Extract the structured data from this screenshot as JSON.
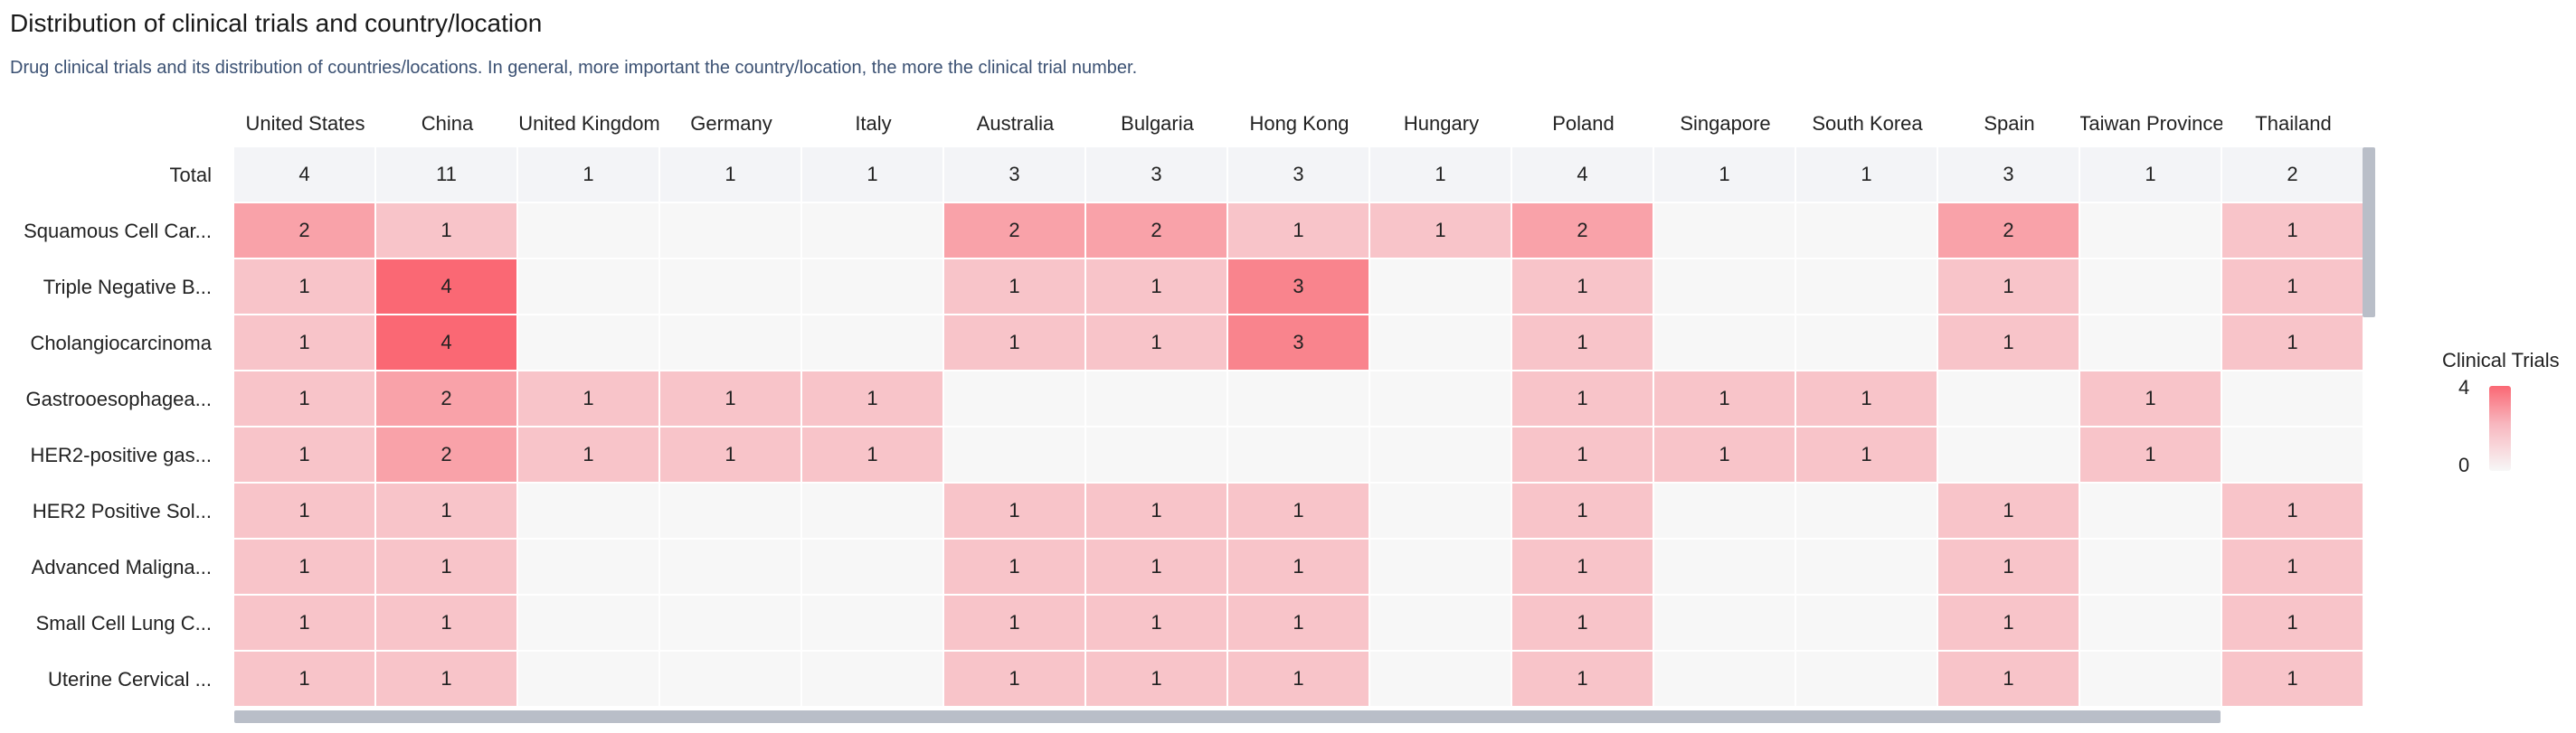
{
  "title": "Distribution of clinical trials and country/location",
  "subtitle": "Drug clinical trials and its distribution of countries/locations. In general, more important the country/location, the more the clinical trial number.",
  "legend": {
    "title": "Clinical Trials",
    "max_label": "4",
    "min_label": "0"
  },
  "colors": {
    "high": "#fa6874",
    "low": "#f7f7f7",
    "total_row": "#f3f4f7"
  },
  "chart_data": {
    "type": "heatmap",
    "title": "Distribution of clinical trials and country/location",
    "x_categories": [
      "United States",
      "China",
      "United Kingdom",
      "Germany",
      "Italy",
      "Australia",
      "Bulgaria",
      "Hong Kong",
      "Hungary",
      "Poland",
      "Singapore",
      "South Korea",
      "Spain",
      "Taiwan Province",
      "Thailand"
    ],
    "y_categories": [
      "Total",
      "Squamous Cell Car...",
      "Triple Negative B...",
      "Cholangiocarcinoma",
      "Gastrooesophagea...",
      "HER2-positive gas...",
      "HER2 Positive Sol...",
      "Advanced Maligna...",
      "Small Cell Lung C...",
      "Uterine Cervical ..."
    ],
    "values": [
      [
        4,
        11,
        1,
        1,
        1,
        3,
        3,
        3,
        1,
        4,
        1,
        1,
        3,
        1,
        2
      ],
      [
        2,
        1,
        0,
        0,
        0,
        2,
        2,
        1,
        1,
        2,
        0,
        0,
        2,
        0,
        1
      ],
      [
        1,
        4,
        0,
        0,
        0,
        1,
        1,
        3,
        0,
        1,
        0,
        0,
        1,
        0,
        1
      ],
      [
        1,
        4,
        0,
        0,
        0,
        1,
        1,
        3,
        0,
        1,
        0,
        0,
        1,
        0,
        1
      ],
      [
        1,
        2,
        1,
        1,
        1,
        0,
        0,
        0,
        0,
        1,
        1,
        1,
        0,
        1,
        0
      ],
      [
        1,
        2,
        1,
        1,
        1,
        0,
        0,
        0,
        0,
        1,
        1,
        1,
        0,
        1,
        0
      ],
      [
        1,
        1,
        0,
        0,
        0,
        1,
        1,
        1,
        0,
        1,
        0,
        0,
        1,
        0,
        1
      ],
      [
        1,
        1,
        0,
        0,
        0,
        1,
        1,
        1,
        0,
        1,
        0,
        0,
        1,
        0,
        1
      ],
      [
        1,
        1,
        0,
        0,
        0,
        1,
        1,
        1,
        0,
        1,
        0,
        0,
        1,
        0,
        1
      ],
      [
        1,
        1,
        0,
        0,
        0,
        1,
        1,
        1,
        0,
        1,
        0,
        0,
        1,
        0,
        1
      ]
    ],
    "color_range": [
      0,
      4
    ],
    "legend_position": "right"
  }
}
